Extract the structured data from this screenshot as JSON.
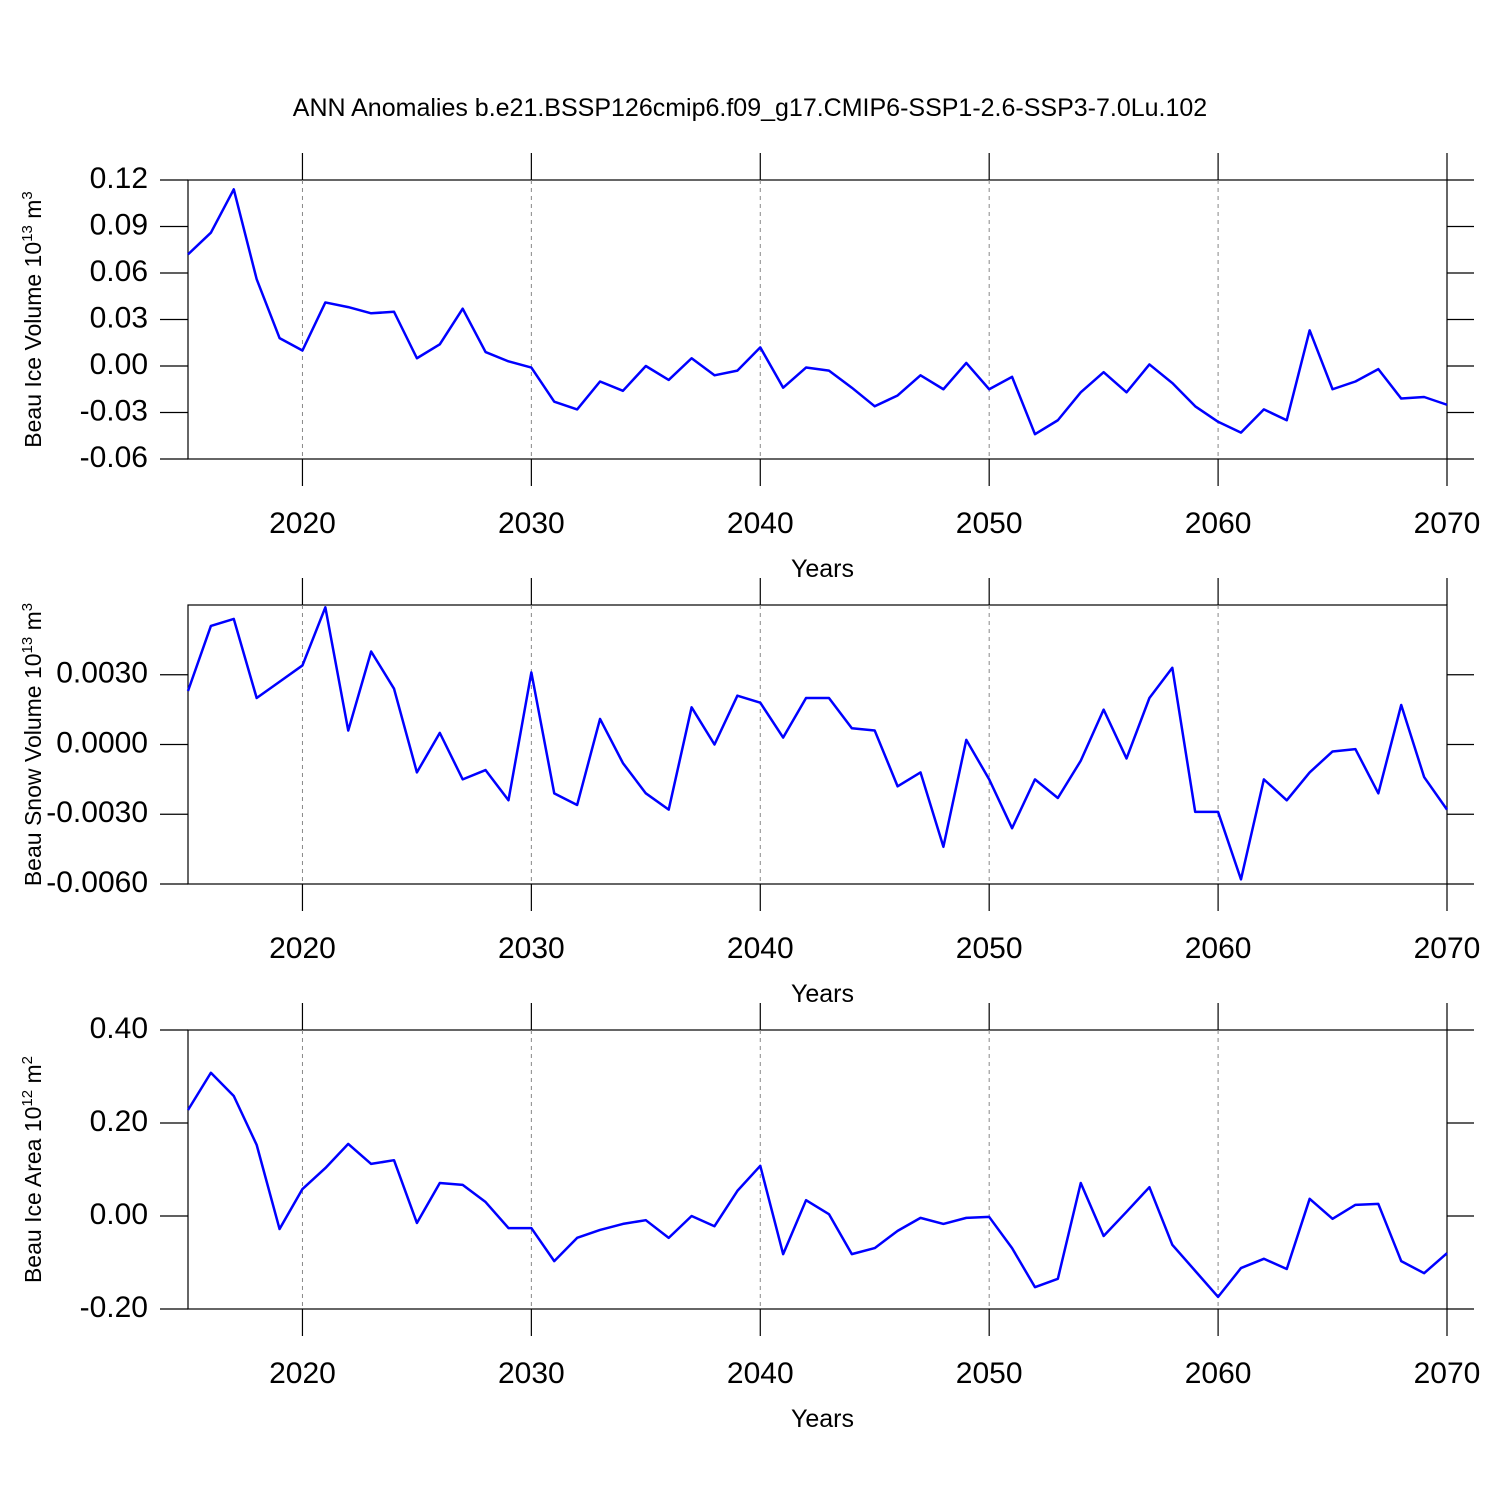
{
  "chart_data": [
    {
      "type": "line",
      "title": "ANN Anomalies b.e21.BSSP126cmip6.f09_g17.CMIP6-SSP1-2.6-SSP3-7.0Lu.102",
      "ylabel": "Beau Ice Volume 10",
      "ylabel_exponent": "13",
      "ylabel_unit": " m",
      "ylabel_unit_exponent": "3",
      "xlabel": "Years",
      "color": "#0000ff",
      "grid": true,
      "x": [
        2015,
        2016,
        2017,
        2018,
        2019,
        2020,
        2021,
        2022,
        2023,
        2024,
        2025,
        2026,
        2027,
        2028,
        2029,
        2030,
        2031,
        2032,
        2033,
        2034,
        2035,
        2036,
        2037,
        2038,
        2039,
        2040,
        2041,
        2042,
        2043,
        2044,
        2045,
        2046,
        2047,
        2048,
        2049,
        2050,
        2051,
        2052,
        2053,
        2054,
        2055,
        2056,
        2057,
        2058,
        2059,
        2060,
        2061,
        2062,
        2063,
        2064,
        2065,
        2066,
        2067,
        2068,
        2069,
        2070
      ],
      "values": [
        0.072,
        0.086,
        0.114,
        0.056,
        0.018,
        0.01,
        0.041,
        0.038,
        0.034,
        0.035,
        0.005,
        0.014,
        0.037,
        0.009,
        0.003,
        -0.001,
        -0.023,
        -0.028,
        -0.01,
        -0.016,
        0.0,
        -0.009,
        0.005,
        -0.006,
        -0.003,
        0.012,
        -0.014,
        -0.001,
        -0.003,
        -0.014,
        -0.026,
        -0.019,
        -0.006,
        -0.015,
        0.002,
        -0.015,
        -0.007,
        -0.044,
        -0.035,
        -0.017,
        -0.004,
        -0.017,
        0.001,
        -0.011,
        -0.026,
        -0.036,
        -0.043,
        -0.028,
        -0.035,
        0.023,
        -0.015,
        -0.01,
        -0.002,
        -0.021,
        -0.02,
        -0.025
      ],
      "xlim": [
        2015,
        2070
      ],
      "xticks": [
        2020,
        2030,
        2040,
        2050,
        2060,
        2070
      ],
      "ylim": [
        -0.06,
        0.12
      ],
      "yticks": [
        {
          "value": -0.06,
          "label": "-0.06"
        },
        {
          "value": -0.03,
          "label": "-0.03"
        },
        {
          "value": 0,
          "label": "0.00"
        },
        {
          "value": 0.03,
          "label": "0.03"
        },
        {
          "value": 0.06,
          "label": "0.06"
        },
        {
          "value": 0.09,
          "label": "0.09"
        },
        {
          "value": 0.12,
          "label": "0.12"
        }
      ]
    },
    {
      "type": "line",
      "ylabel": "Beau Snow Volume 10",
      "ylabel_exponent": "13",
      "ylabel_unit": " m",
      "ylabel_unit_exponent": "3",
      "xlabel": "Years",
      "color": "#0000ff",
      "grid": true,
      "x": [
        2015,
        2016,
        2017,
        2018,
        2019,
        2020,
        2021,
        2022,
        2023,
        2024,
        2025,
        2026,
        2027,
        2028,
        2029,
        2030,
        2031,
        2032,
        2033,
        2034,
        2035,
        2036,
        2037,
        2038,
        2039,
        2040,
        2041,
        2042,
        2043,
        2044,
        2045,
        2046,
        2047,
        2048,
        2049,
        2050,
        2051,
        2052,
        2053,
        2054,
        2055,
        2056,
        2057,
        2058,
        2059,
        2060,
        2061,
        2062,
        2063,
        2064,
        2065,
        2066,
        2067,
        2068,
        2069,
        2070
      ],
      "values": [
        0.0023,
        0.0051,
        0.0054,
        0.002,
        0.0027,
        0.0034,
        0.0059,
        0.0006,
        0.004,
        0.0024,
        -0.0012,
        0.0005,
        -0.0015,
        -0.0011,
        -0.0024,
        0.0031,
        -0.0021,
        -0.0026,
        0.0011,
        -0.0008,
        -0.0021,
        -0.0028,
        0.0016,
        0.0,
        0.0021,
        0.0018,
        0.0003,
        0.002,
        0.002,
        0.0007,
        0.0006,
        -0.0018,
        -0.0012,
        -0.0044,
        0.0002,
        -0.0015,
        -0.0036,
        -0.0015,
        -0.0023,
        -0.0007,
        0.0015,
        -0.0006,
        0.002,
        0.0033,
        -0.0029,
        -0.0029,
        -0.0058,
        -0.0015,
        -0.0024,
        -0.0012,
        -0.0003,
        -0.0002,
        -0.0021,
        0.0017,
        -0.0014,
        -0.0028
      ],
      "xlim": [
        2015,
        2070
      ],
      "xticks": [
        2020,
        2030,
        2040,
        2050,
        2060,
        2070
      ],
      "ylim": [
        -0.006,
        0.006
      ],
      "yticks": [
        {
          "value": -0.006,
          "label": "-0.0060"
        },
        {
          "value": -0.003,
          "label": "-0.0030"
        },
        {
          "value": 0,
          "label": "0.0000"
        },
        {
          "value": 0.003,
          "label": "0.0030"
        }
      ]
    },
    {
      "type": "line",
      "ylabel": "Beau Ice Area 10",
      "ylabel_exponent": "12",
      "ylabel_unit": " m",
      "ylabel_unit_exponent": "2",
      "xlabel": "Years",
      "color": "#0000ff",
      "grid": true,
      "x": [
        2015,
        2016,
        2017,
        2018,
        2019,
        2020,
        2021,
        2022,
        2023,
        2024,
        2025,
        2026,
        2027,
        2028,
        2029,
        2030,
        2031,
        2032,
        2033,
        2034,
        2035,
        2036,
        2037,
        2038,
        2039,
        2040,
        2041,
        2042,
        2043,
        2044,
        2045,
        2046,
        2047,
        2048,
        2049,
        2050,
        2051,
        2052,
        2053,
        2054,
        2055,
        2056,
        2057,
        2058,
        2059,
        2060,
        2061,
        2062,
        2063,
        2064,
        2065,
        2066,
        2067,
        2068,
        2069,
        2070
      ],
      "values": [
        0.228,
        0.308,
        0.258,
        0.153,
        -0.028,
        0.058,
        0.103,
        0.155,
        0.112,
        0.12,
        -0.015,
        0.071,
        0.067,
        0.03,
        -0.026,
        -0.026,
        -0.097,
        -0.047,
        -0.03,
        -0.017,
        -0.009,
        -0.047,
        0.0,
        -0.022,
        0.054,
        0.108,
        -0.082,
        0.034,
        0.004,
        -0.082,
        -0.069,
        -0.032,
        -0.004,
        -0.017,
        -0.004,
        -0.002,
        -0.069,
        -0.153,
        -0.135,
        0.071,
        -0.043,
        0.009,
        0.062,
        -0.062,
        -0.118,
        -0.174,
        -0.112,
        -0.092,
        -0.114,
        0.037,
        -0.006,
        0.024,
        0.026,
        -0.097,
        -0.123,
        -0.08
      ],
      "xlim": [
        2015,
        2070
      ],
      "xticks": [
        2020,
        2030,
        2040,
        2050,
        2060,
        2070
      ],
      "ylim": [
        -0.2,
        0.4
      ],
      "yticks": [
        {
          "value": -0.2,
          "label": "-0.20"
        },
        {
          "value": 0,
          "label": "0.00"
        },
        {
          "value": 0.2,
          "label": "0.20"
        },
        {
          "value": 0.4,
          "label": "0.40"
        }
      ]
    }
  ]
}
